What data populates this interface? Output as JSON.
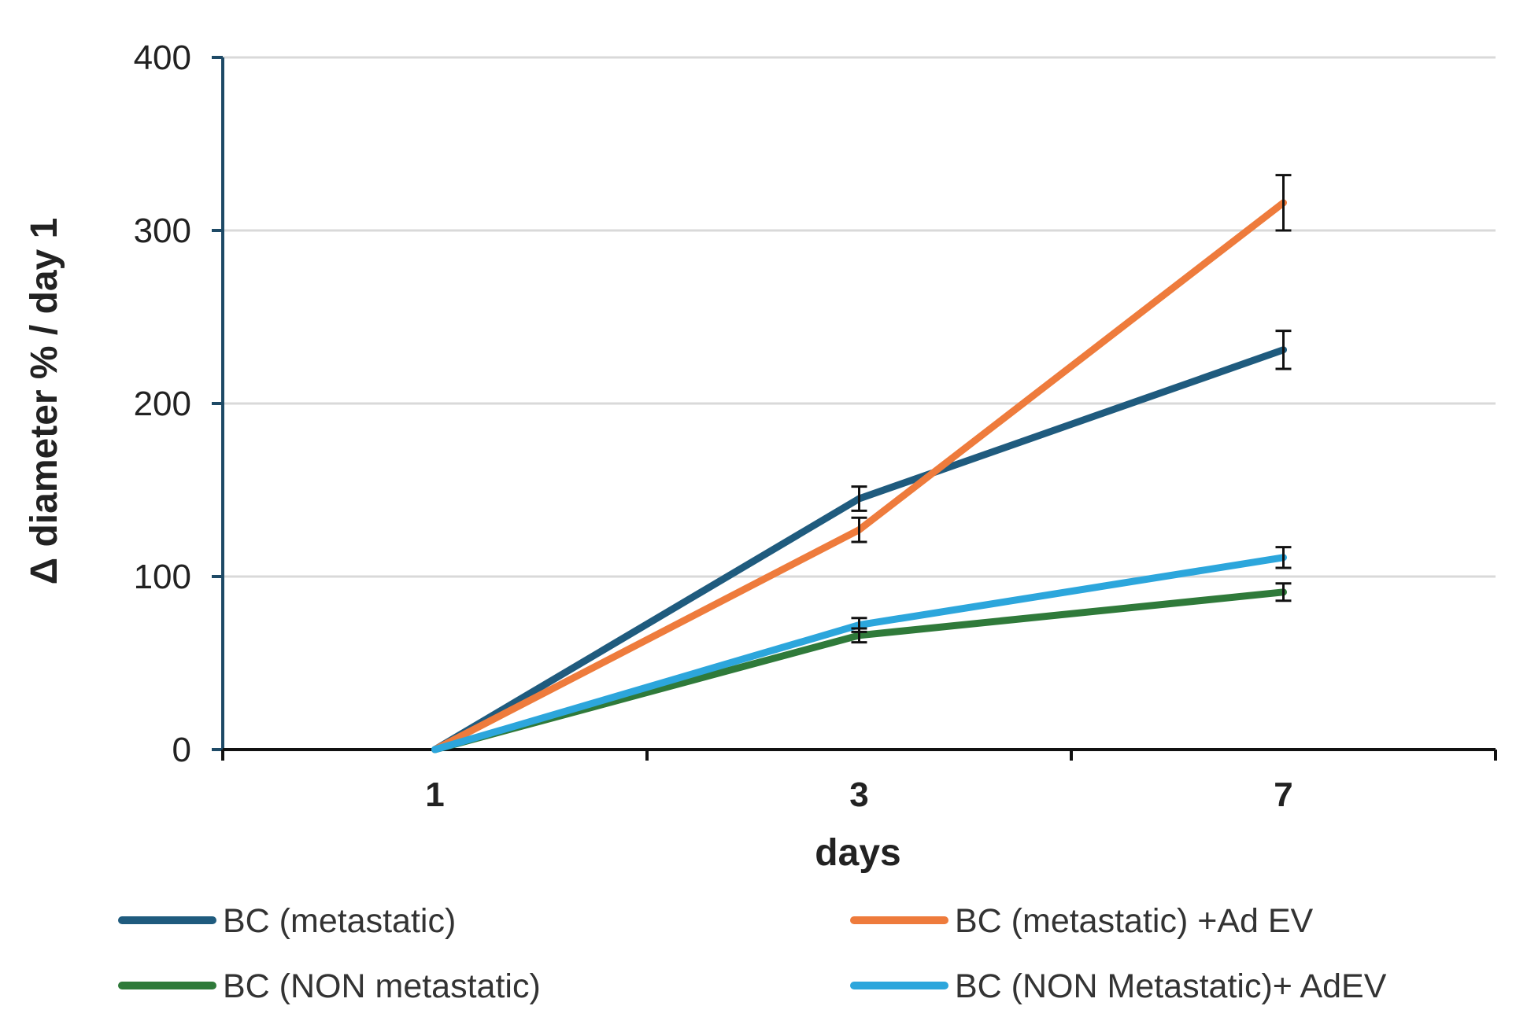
{
  "chart_data": {
    "type": "line",
    "title": "",
    "xlabel": "days",
    "ylabel": "Δ diameter % / day 1",
    "categories": [
      "1",
      "3",
      "7"
    ],
    "ylim": [
      0,
      400
    ],
    "yticks": [
      0,
      100,
      200,
      300,
      400
    ],
    "grid": true,
    "legend_position": "bottom",
    "series": [
      {
        "name": "BC (metastatic)",
        "color": "#1f5b7e",
        "values": [
          0,
          145,
          231
        ],
        "errors": [
          0,
          7,
          11
        ]
      },
      {
        "name": "BC (metastatic) +Ad EV",
        "color": "#ee7b3c",
        "values": [
          0,
          127,
          316
        ],
        "errors": [
          0,
          7,
          16
        ]
      },
      {
        "name": "BC (NON metastatic)",
        "color": "#2f7a3a",
        "values": [
          0,
          66,
          91
        ],
        "errors": [
          0,
          4,
          5
        ]
      },
      {
        "name": "BC (NON Metastatic)+ AdEV",
        "color": "#2ca6dc",
        "values": [
          0,
          72,
          111
        ],
        "errors": [
          0,
          4,
          6
        ]
      }
    ]
  }
}
